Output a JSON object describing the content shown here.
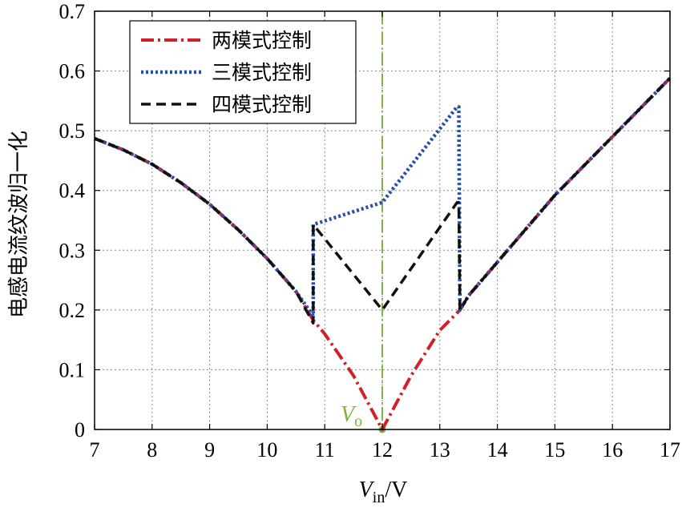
{
  "chart_data": {
    "type": "line",
    "xlabel_main": "V",
    "xlabel_sub": "in",
    "xlabel_unit": "/V",
    "ylabel": "电感电流纹波归一化",
    "xlim": [
      7,
      17
    ],
    "ylim": [
      0,
      0.7
    ],
    "xticks": [
      7,
      8,
      9,
      10,
      11,
      12,
      13,
      14,
      15,
      16,
      17
    ],
    "yticks": [
      0,
      0.1,
      0.2,
      0.3,
      0.4,
      0.5,
      0.6,
      0.7
    ],
    "ytick_labels": [
      "0",
      "0.1",
      "0.2",
      "0.3",
      "0.4",
      "0.5",
      "0.6",
      "0.7"
    ],
    "grid": true,
    "legend_position": "top-left",
    "reference_line": {
      "x": 12,
      "label_main": "V",
      "label_sub": "o",
      "color": "#7cb342"
    },
    "series": [
      {
        "name": "两模式控制",
        "color": "#d0202a",
        "style": "dashdot",
        "x": [
          7,
          7.5,
          8,
          8.5,
          9,
          9.5,
          10,
          10.5,
          10.8,
          11,
          11.5,
          12,
          12.5,
          13,
          13.35,
          13.5,
          14,
          14.5,
          15,
          15.5,
          16,
          16.5,
          17
        ],
        "y": [
          0.487,
          0.468,
          0.444,
          0.413,
          0.377,
          0.334,
          0.286,
          0.231,
          0.183,
          0.16,
          0.09,
          0.0,
          0.09,
          0.166,
          0.2,
          0.224,
          0.28,
          0.336,
          0.392,
          0.441,
          0.49,
          0.539,
          0.588
        ]
      },
      {
        "name": "三模式控制",
        "color": "#2b4fa3",
        "style": "dotted",
        "x": [
          7,
          7.5,
          8,
          8.5,
          9,
          9.5,
          10,
          10.5,
          10.8,
          10.8,
          12,
          13.3,
          13.33,
          13.35,
          13.5,
          14,
          14.5,
          15,
          15.5,
          16,
          16.5,
          17
        ],
        "y": [
          0.487,
          0.468,
          0.444,
          0.413,
          0.377,
          0.334,
          0.286,
          0.231,
          0.19,
          0.343,
          0.38,
          0.54,
          0.54,
          0.2,
          0.224,
          0.28,
          0.336,
          0.392,
          0.441,
          0.49,
          0.539,
          0.588
        ]
      },
      {
        "name": "四模式控制",
        "color": "#111111",
        "style": "dashed",
        "x": [
          7,
          7.5,
          8,
          8.5,
          9,
          9.5,
          10,
          10.5,
          10.8,
          10.8,
          12,
          13.3,
          13.33,
          13.35,
          13.5,
          14,
          14.5,
          15,
          15.5,
          16,
          16.5,
          17
        ],
        "y": [
          0.487,
          0.468,
          0.444,
          0.413,
          0.377,
          0.334,
          0.286,
          0.231,
          0.178,
          0.343,
          0.2,
          0.38,
          0.38,
          0.2,
          0.224,
          0.28,
          0.336,
          0.392,
          0.441,
          0.49,
          0.539,
          0.588
        ]
      }
    ]
  }
}
